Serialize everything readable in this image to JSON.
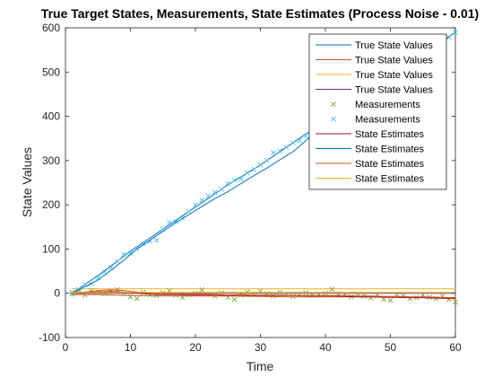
{
  "chart_data": {
    "type": "line",
    "title": "True Target States, Measurements, State Estimates (Process Noise - 0.01)",
    "xlabel": "Time",
    "ylabel": "State Values",
    "xlim": [
      0,
      60
    ],
    "ylim": [
      -100,
      600
    ],
    "xticks": [
      0,
      10,
      20,
      30,
      40,
      50,
      60
    ],
    "yticks": [
      -100,
      0,
      100,
      200,
      300,
      400,
      500,
      600
    ],
    "grid": false,
    "legend_position": "top-right",
    "legend": [
      {
        "label": "True State Values",
        "color": "#0072bd",
        "marker": "line"
      },
      {
        "label": "True State Values",
        "color": "#d95319",
        "marker": "line"
      },
      {
        "label": "True State Values",
        "color": "#edb120",
        "marker": "line"
      },
      {
        "label": "True State Values",
        "color": "#7e2f8e",
        "marker": "line"
      },
      {
        "label": "Measurements",
        "color": "#77ac30",
        "marker": "x"
      },
      {
        "label": "Measurements",
        "color": "#4dbeee",
        "marker": "x"
      },
      {
        "label": "State Estimates",
        "color": "#a2142f",
        "marker": "line"
      },
      {
        "label": "State Estimates",
        "color": "#0072bd",
        "marker": "line"
      },
      {
        "label": "State Estimates",
        "color": "#d95319",
        "marker": "line"
      },
      {
        "label": "State Estimates",
        "color": "#edb120",
        "marker": "line"
      }
    ],
    "series": [
      {
        "type": "line",
        "color": "#0072bd",
        "x": [
          1,
          5,
          10,
          15,
          20,
          25,
          30,
          35,
          40,
          45,
          50,
          55,
          60
        ],
        "y": [
          0,
          40,
          95,
          145,
          195,
          245,
          290,
          340,
          390,
          440,
          490,
          540,
          590
        ]
      },
      {
        "type": "line",
        "color": "#d95319",
        "x": [
          1,
          5,
          10,
          15,
          20,
          25,
          30,
          35,
          40,
          45,
          50,
          55,
          60
        ],
        "y": [
          -3,
          -3,
          -5,
          -6,
          -6,
          -6,
          -7,
          -8,
          -8,
          -8,
          -9,
          -10,
          -10
        ]
      },
      {
        "type": "line",
        "color": "#edb120",
        "x": [
          1,
          60
        ],
        "y": [
          10,
          10
        ]
      },
      {
        "type": "line",
        "color": "#7e2f8e",
        "x": [
          1,
          5,
          10,
          15,
          20,
          25,
          30,
          35,
          40,
          45,
          50,
          55,
          60
        ],
        "y": [
          0,
          0,
          0,
          0,
          0,
          0,
          0,
          0,
          0,
          0,
          0,
          0,
          0
        ]
      },
      {
        "type": "scatter",
        "color": "#77ac30",
        "x": [
          1,
          2,
          3,
          4,
          5,
          6,
          7,
          8,
          9,
          10,
          11,
          12,
          13,
          14,
          15,
          16,
          17,
          18,
          19,
          20,
          21,
          22,
          23,
          24,
          25,
          26,
          27,
          28,
          29,
          30,
          31,
          32,
          33,
          34,
          35,
          36,
          37,
          38,
          39,
          40,
          41,
          42,
          43,
          44,
          45,
          46,
          47,
          48,
          49,
          50,
          51,
          52,
          53,
          54,
          55,
          56,
          57,
          58,
          59,
          60
        ],
        "y": [
          -2,
          3,
          -4,
          6,
          2,
          -1,
          4,
          8,
          0,
          -8,
          -12,
          2,
          -3,
          -5,
          1,
          6,
          -4,
          -10,
          -3,
          0,
          8,
          -2,
          -6,
          1,
          -9,
          -14,
          -4,
          3,
          -2,
          4,
          -1,
          -6,
          2,
          -3,
          -7,
          -2,
          1,
          -5,
          -3,
          0,
          9,
          -2,
          -4,
          -8,
          -1,
          -6,
          -10,
          -5,
          -14,
          -16,
          -2,
          -6,
          -12,
          -10,
          -4,
          -9,
          -12,
          -6,
          -14,
          -20
        ]
      },
      {
        "type": "scatter",
        "color": "#4dbeee",
        "x": [
          1,
          2,
          3,
          4,
          5,
          6,
          7,
          8,
          9,
          10,
          11,
          12,
          13,
          14,
          15,
          16,
          17,
          18,
          19,
          20,
          21,
          22,
          23,
          24,
          25,
          26,
          27,
          28,
          29,
          30,
          31,
          32,
          33,
          34,
          35,
          36,
          37,
          38,
          59,
          60
        ],
        "y": [
          2,
          8,
          20,
          22,
          35,
          48,
          58,
          72,
          88,
          90,
          100,
          112,
          118,
          120,
          145,
          160,
          162,
          170,
          185,
          200,
          210,
          220,
          228,
          235,
          248,
          255,
          258,
          272,
          280,
          290,
          300,
          318,
          322,
          330,
          340,
          345,
          355,
          368,
          578,
          590
        ]
      },
      {
        "type": "line",
        "color": "#a2142f",
        "x": [
          1,
          3,
          5,
          7,
          9,
          11,
          13,
          15,
          17,
          19,
          21,
          23,
          25,
          27,
          29,
          31,
          33,
          35,
          37,
          39,
          41,
          43,
          45,
          47,
          49,
          51,
          53,
          55,
          57,
          59,
          60
        ],
        "y": [
          0,
          2,
          3,
          4,
          2,
          0,
          -2,
          -3,
          -3,
          -4,
          -4,
          -4,
          -5,
          -4,
          -5,
          -5,
          -5,
          -5,
          -6,
          -6,
          -6,
          -7,
          -8,
          -8,
          -9,
          -9,
          -10,
          -10,
          -11,
          -12,
          -12
        ]
      },
      {
        "type": "line",
        "color": "#0072bd",
        "x": [
          1,
          3,
          5,
          7,
          9,
          11,
          13,
          15,
          17,
          19,
          21,
          23,
          25,
          27,
          29,
          31,
          33,
          35,
          37,
          39
        ],
        "y": [
          0,
          15,
          30,
          52,
          75,
          100,
          120,
          140,
          160,
          178,
          196,
          214,
          230,
          248,
          266,
          283,
          302,
          320,
          345,
          375
        ]
      },
      {
        "type": "line",
        "color": "#d95319",
        "x": [
          1,
          3,
          5,
          7,
          9,
          11,
          13,
          15,
          17,
          19,
          21,
          23,
          25,
          27,
          29,
          31,
          33,
          35,
          37,
          39,
          41,
          43,
          45,
          47,
          49,
          51,
          53,
          55,
          57,
          59,
          60
        ],
        "y": [
          0,
          3,
          6,
          8,
          6,
          3,
          1,
          -1,
          -2,
          -2,
          -2,
          -3,
          -4,
          -3,
          -4,
          -4,
          -4,
          -5,
          -5,
          -5,
          -5,
          -5,
          -6,
          -6,
          -7,
          -7,
          -8,
          -8,
          -9,
          -10,
          -10
        ]
      },
      {
        "type": "line",
        "color": "#edb120",
        "x": [
          1,
          60
        ],
        "y": [
          2,
          2
        ]
      }
    ]
  }
}
